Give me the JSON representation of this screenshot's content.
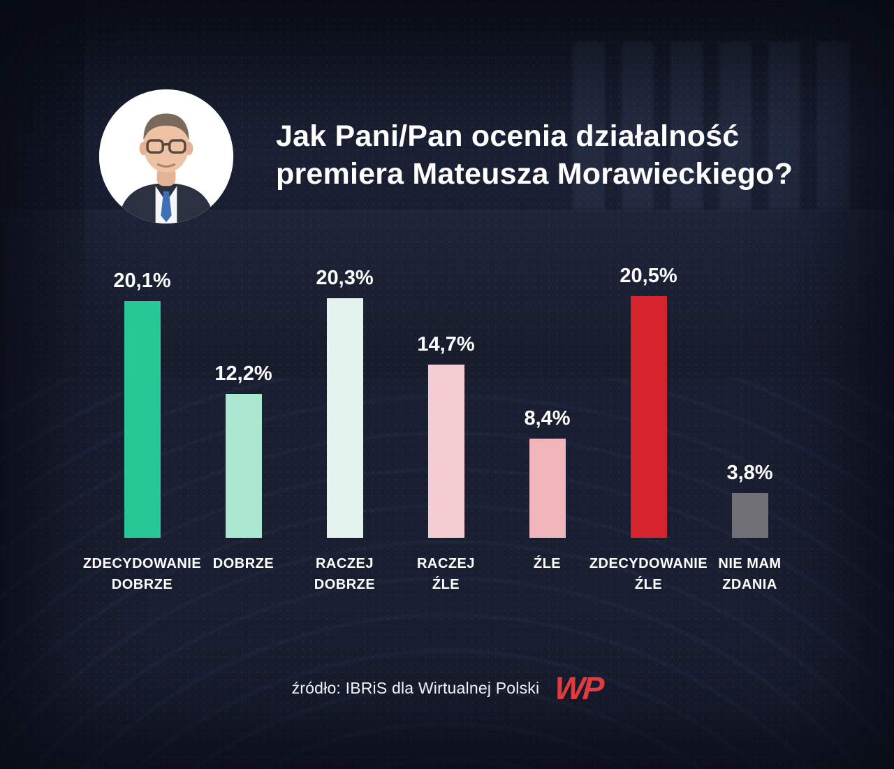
{
  "header": {
    "title_line1": "Jak Pani/Pan ocenia działalność",
    "title_line2": "premiera Mateusza Morawieckiego?"
  },
  "footer": {
    "source": "źródło: IBRiS dla Wirtualnej Polski",
    "logo_text": "WP"
  },
  "colors": {
    "background": "#181d2e",
    "text": "#ffffff",
    "logo_red": "#e23b3f"
  },
  "chart_data": {
    "type": "bar",
    "title": "Jak Pani/Pan ocenia działalność premiera Mateusza Morawieckiego?",
    "categories": [
      "ZDECYDOWANIE DOBRZE",
      "DOBRZE",
      "RACZEJ DOBRZE",
      "RACZEJ ŹLE",
      "ŹLE",
      "ZDECYDOWANIE ŹLE",
      "NIE MAM ZDANIA"
    ],
    "category_lines": [
      [
        "ZDECYDOWANIE",
        "DOBRZE"
      ],
      [
        "DOBRZE"
      ],
      [
        "RACZEJ",
        "DOBRZE"
      ],
      [
        "RACZEJ",
        "ŹLE"
      ],
      [
        "ŹLE"
      ],
      [
        "ZDECYDOWANIE",
        "ŹLE"
      ],
      [
        "NIE MAM",
        "ZDANIA"
      ]
    ],
    "values": [
      20.1,
      12.2,
      20.3,
      14.7,
      8.4,
      20.5,
      3.8
    ],
    "value_labels": [
      "20,1%",
      "12,2%",
      "20,3%",
      "14,7%",
      "8,4%",
      "20,5%",
      "3,8%"
    ],
    "bar_colors": [
      "#29c795",
      "#a9e7d0",
      "#e4f3ee",
      "#f3cdd2",
      "#f0b4ba",
      "#d5232b",
      "#707076"
    ],
    "ylim": [
      0,
      22
    ],
    "grid": false,
    "legend": false,
    "xlabel": "",
    "ylabel": "",
    "source": "źródło: IBRiS dla Wirtualnej Polski"
  }
}
